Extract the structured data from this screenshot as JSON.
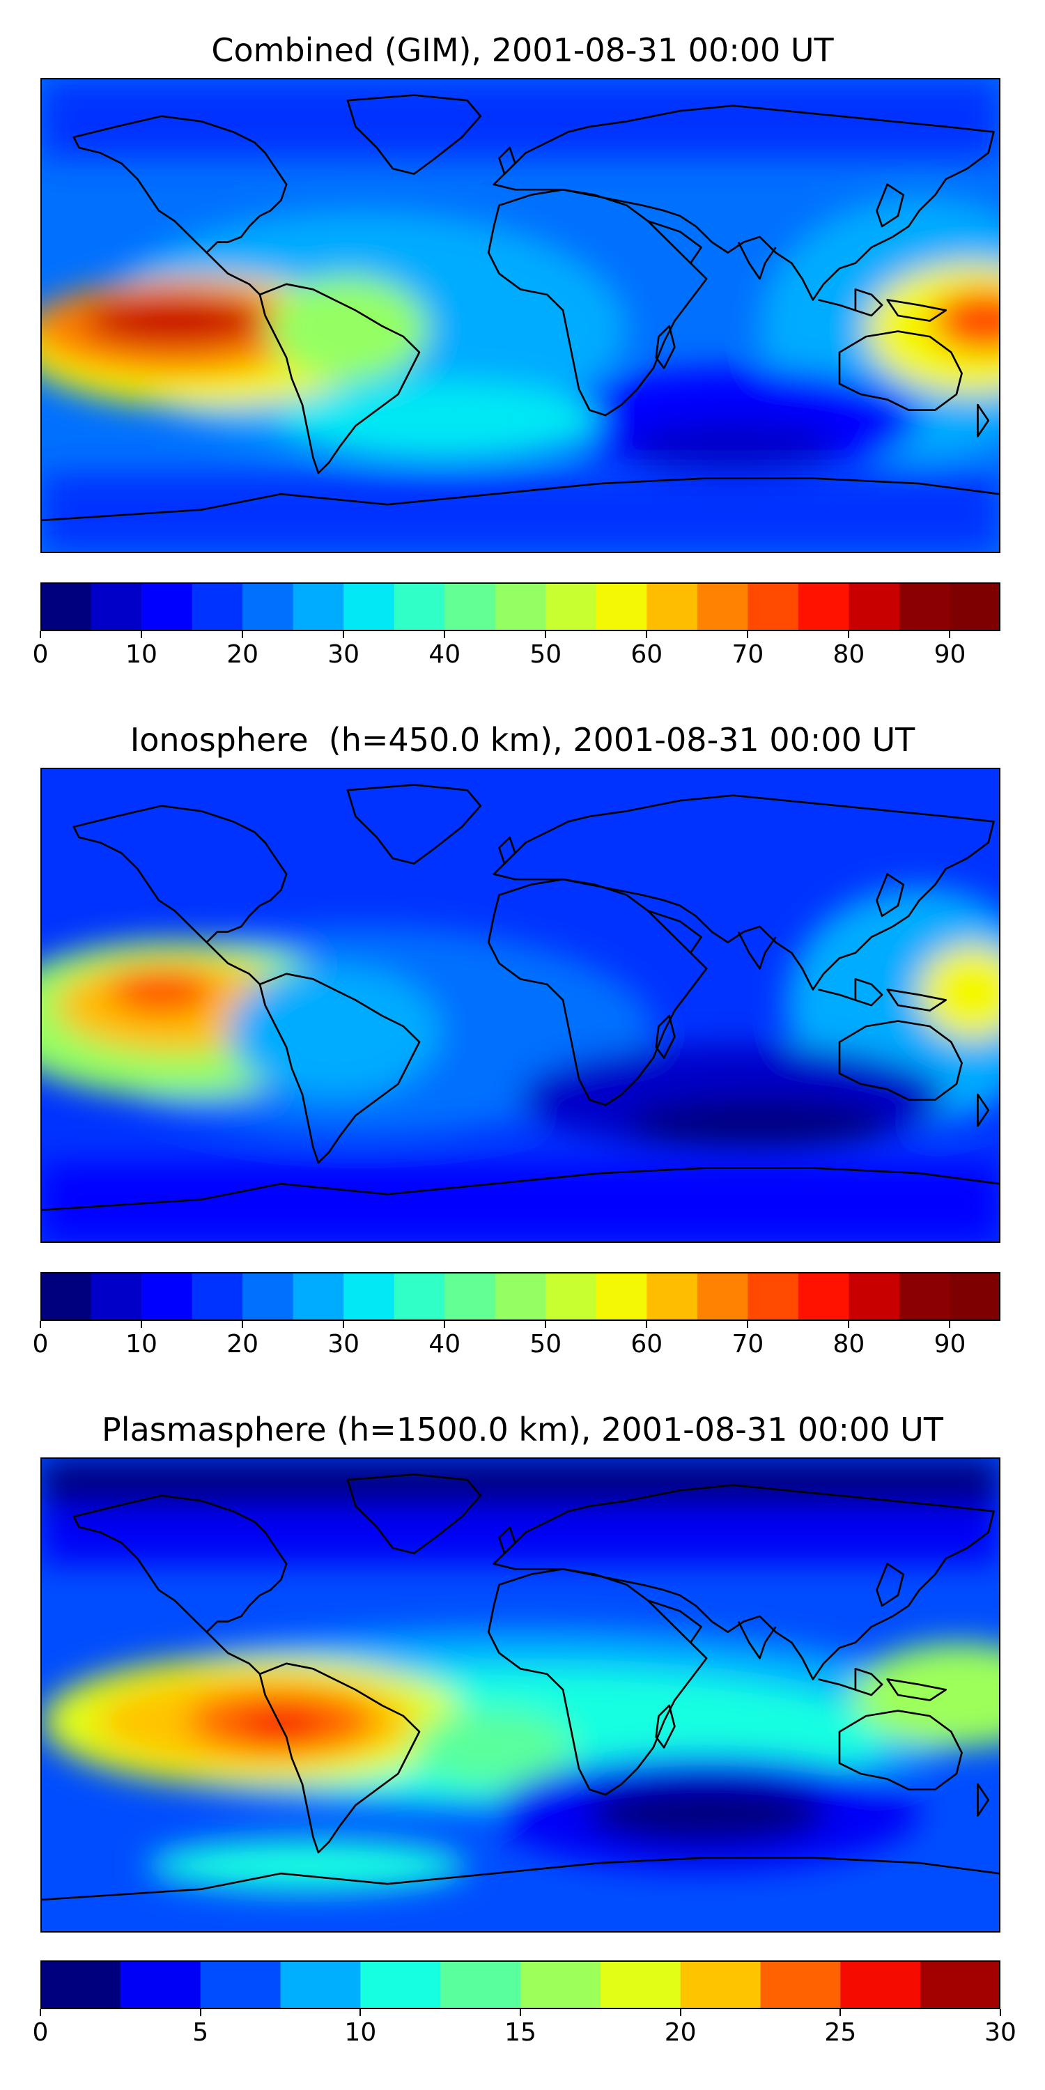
{
  "panels": [
    {
      "title": "Combined (GIM), 2001-08-31 00:00 UT",
      "colorbar": {
        "min": 0,
        "max": 95,
        "step": 5,
        "tick_labels": [
          "0",
          "10",
          "20",
          "30",
          "40",
          "50",
          "60",
          "70",
          "80",
          "90"
        ],
        "tick_values": [
          0,
          10,
          20,
          30,
          40,
          50,
          60,
          70,
          80,
          90
        ]
      }
    },
    {
      "title": "Ionosphere  (h=450.0 km), 2001-08-31 00:00 UT",
      "colorbar": {
        "min": 0,
        "max": 95,
        "step": 5,
        "tick_labels": [
          "0",
          "10",
          "20",
          "30",
          "40",
          "50",
          "60",
          "70",
          "80",
          "90"
        ],
        "tick_values": [
          0,
          10,
          20,
          30,
          40,
          50,
          60,
          70,
          80,
          90
        ]
      }
    },
    {
      "title": "Plasmasphere (h=1500.0 km), 2001-08-31 00:00 UT",
      "colorbar": {
        "min": 0,
        "max": 30,
        "step": 2.5,
        "tick_labels": [
          "0",
          "5",
          "10",
          "15",
          "20",
          "25",
          "30"
        ],
        "tick_values": [
          0,
          5,
          10,
          15,
          20,
          25,
          30
        ]
      }
    }
  ],
  "colormap": "jet",
  "colors": {
    "coastline": "#000000",
    "jet_19": [
      "#00007f",
      "#0000c8",
      "#0000ff",
      "#0033ff",
      "#0070ff",
      "#00acff",
      "#02e8f4",
      "#30ffc7",
      "#63ff94",
      "#94ff63",
      "#c7ff30",
      "#f4f802",
      "#ffbd00",
      "#ff8200",
      "#ff4a00",
      "#ff1200",
      "#c80000",
      "#8b0000",
      "#7f0000"
    ],
    "jet_12": [
      "#00007f",
      "#0000f6",
      "#004dff",
      "#00b0ff",
      "#16ffe1",
      "#5aff9d",
      "#9dff5a",
      "#e1ff16",
      "#ffc400",
      "#ff6200",
      "#f60b00",
      "#a30000"
    ]
  }
}
